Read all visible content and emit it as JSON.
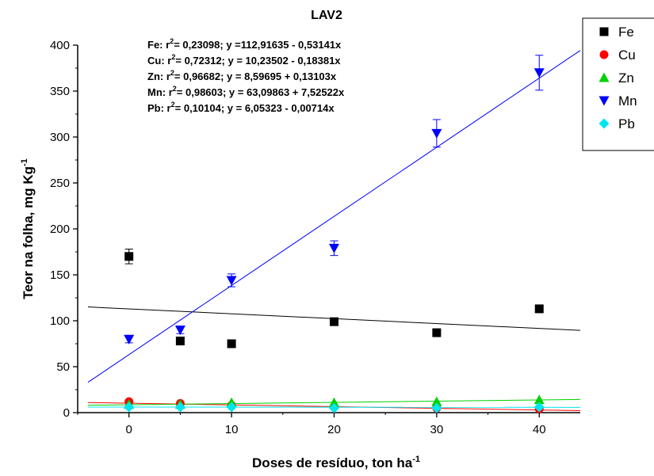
{
  "chart_data": {
    "type": "scatter",
    "title": "LAV2",
    "xlabel": "Doses de resíduo, ton ha",
    "xlabel_sup": "-1",
    "ylabel": "Teor na folha, mg Kg",
    "ylabel_sup": "-1",
    "xlim": [
      -5,
      44
    ],
    "ylim": [
      0,
      400
    ],
    "x_ticks": [
      0,
      10,
      20,
      30,
      40
    ],
    "y_ticks": [
      0,
      50,
      100,
      150,
      200,
      250,
      300,
      350,
      400
    ],
    "x": [
      0,
      5,
      10,
      20,
      30,
      40
    ],
    "legend_position": "top-right",
    "grid": false,
    "series": [
      {
        "name": "Fe",
        "color": "#000000",
        "marker": "square",
        "values": [
          170,
          78,
          75,
          99,
          87,
          113
        ],
        "errors": [
          8,
          0,
          0,
          4,
          3,
          4
        ],
        "fit": {
          "intercept": 112.91635,
          "slope": -0.53141
        }
      },
      {
        "name": "Cu",
        "color": "#ff0000",
        "marker": "circle",
        "values": [
          12,
          10,
          8,
          6,
          5,
          4
        ],
        "errors": [
          0,
          0,
          0,
          0,
          0,
          0
        ],
        "fit": {
          "intercept": 10.23502,
          "slope": -0.18381
        }
      },
      {
        "name": "Zn",
        "color": "#00d000",
        "marker": "triangle-up",
        "values": [
          9,
          9,
          11,
          11,
          12,
          14
        ],
        "errors": [
          0,
          0,
          0,
          0,
          0,
          0
        ],
        "fit": {
          "intercept": 8.59695,
          "slope": 0.13103
        }
      },
      {
        "name": "Mn",
        "color": "#0000ff",
        "marker": "triangle-down",
        "values": [
          80,
          90,
          144,
          179,
          304,
          370
        ],
        "errors": [
          4,
          4,
          7,
          8,
          15,
          19
        ],
        "fit": {
          "intercept": 63.09863,
          "slope": 7.52522
        }
      },
      {
        "name": "Pb",
        "color": "#00e5ee",
        "marker": "diamond",
        "values": [
          6,
          6,
          6,
          5,
          5,
          6
        ],
        "errors": [
          0,
          0,
          0,
          0,
          0,
          0
        ],
        "fit": {
          "intercept": 6.05323,
          "slope": -0.00714
        }
      }
    ],
    "annotations": [
      {
        "prefix": "Fe: r",
        "sup": "2",
        "suffix": "= 0,23098; y =112,91635 - 0,53141x"
      },
      {
        "prefix": "Cu: r",
        "sup": "2",
        "suffix": "= 0,72312; y = 10,23502 - 0,18381x"
      },
      {
        "prefix": "Zn: r",
        "sup": "2",
        "suffix": "= 0,96682; y = 8,59695 + 0,13103x"
      },
      {
        "prefix": "Mn: r",
        "sup": "2",
        "suffix": "= 0,98603; y = 63,09863 + 7,52522x"
      },
      {
        "prefix": "Pb: r",
        "sup": "2",
        "suffix": "= 0,10104; y = 6,05323 - 0,00714x"
      }
    ]
  }
}
